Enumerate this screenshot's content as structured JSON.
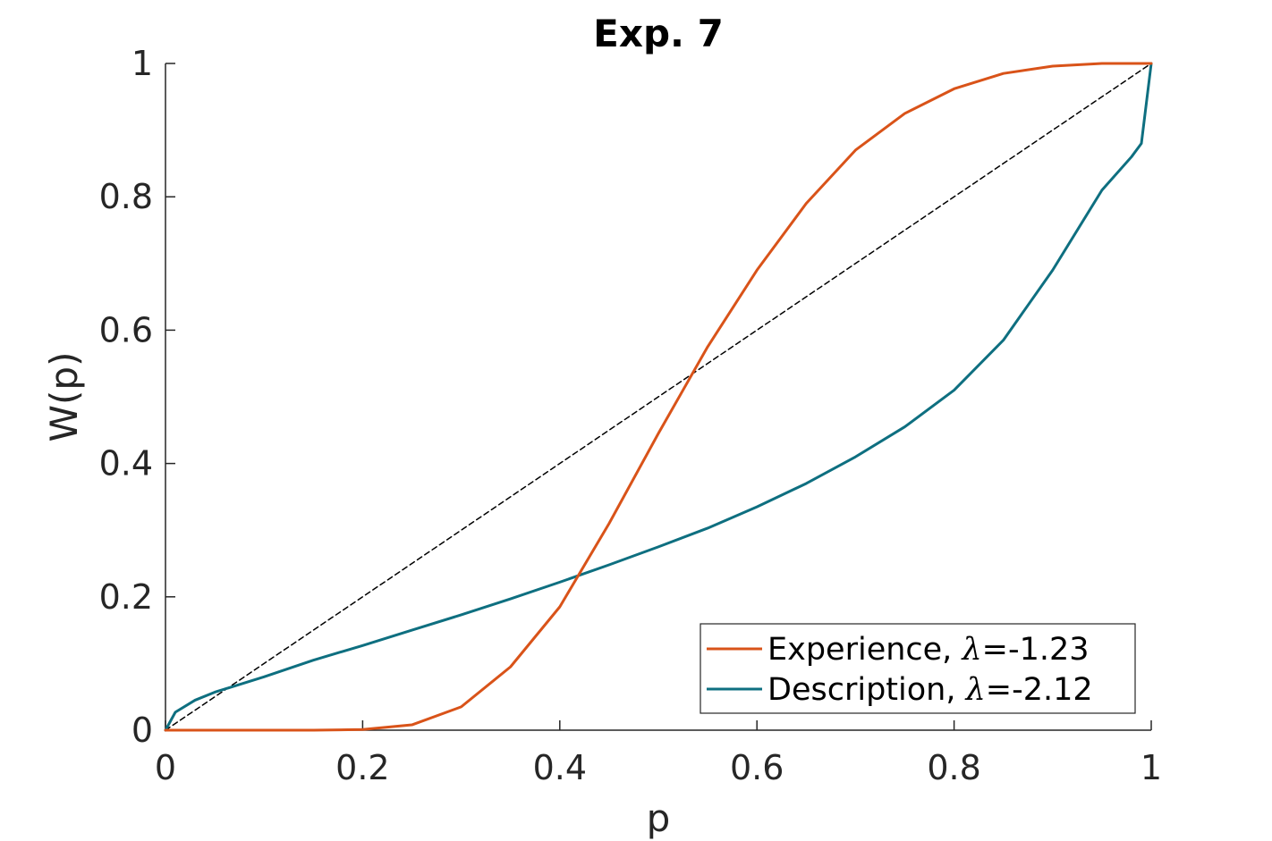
{
  "chart_data": {
    "type": "line",
    "title": "Exp. 7",
    "xlabel": "p",
    "ylabel": "W(p)",
    "xlim": [
      0,
      1
    ],
    "ylim": [
      0,
      1
    ],
    "xticks": [
      0,
      0.2,
      0.4,
      0.6,
      0.8,
      1
    ],
    "xtick_labels": [
      "0",
      "0.2",
      "0.4",
      "0.6",
      "0.8",
      "1"
    ],
    "yticks": [
      0,
      0.2,
      0.4,
      0.6,
      0.8,
      1
    ],
    "ytick_labels": [
      "0",
      "0.2",
      "0.4",
      "0.6",
      "0.8",
      "1"
    ],
    "grid": false,
    "legend_position": "bottom-right",
    "series": [
      {
        "name": "Experience, λ=-1.23",
        "label_prefix": "Experience, ",
        "label_symbol": "λ",
        "label_suffix": "=-1.23",
        "color": "#D95319",
        "x": [
          0,
          0.05,
          0.1,
          0.15,
          0.2,
          0.25,
          0.3,
          0.35,
          0.4,
          0.45,
          0.5,
          0.55,
          0.6,
          0.65,
          0.7,
          0.75,
          0.8,
          0.85,
          0.9,
          0.95,
          1
        ],
        "y": [
          0,
          0,
          0,
          0,
          0.001,
          0.008,
          0.035,
          0.095,
          0.185,
          0.31,
          0.445,
          0.575,
          0.69,
          0.79,
          0.87,
          0.925,
          0.962,
          0.985,
          0.996,
          1.0,
          1.0
        ]
      },
      {
        "name": "Description, λ=-2.12",
        "label_prefix": "Description, ",
        "label_symbol": "λ",
        "label_suffix": "=-2.12",
        "color": "#0E6F80",
        "x": [
          0,
          0.01,
          0.03,
          0.05,
          0.1,
          0.15,
          0.2,
          0.25,
          0.3,
          0.35,
          0.4,
          0.45,
          0.5,
          0.55,
          0.6,
          0.65,
          0.7,
          0.75,
          0.8,
          0.85,
          0.9,
          0.95,
          0.98,
          0.99,
          1
        ],
        "y": [
          0,
          0.027,
          0.045,
          0.057,
          0.08,
          0.105,
          0.127,
          0.15,
          0.173,
          0.197,
          0.222,
          0.248,
          0.275,
          0.303,
          0.335,
          0.37,
          0.41,
          0.455,
          0.51,
          0.585,
          0.69,
          0.81,
          0.86,
          0.88,
          1.0
        ]
      },
      {
        "name": "",
        "color": "#000000",
        "style": "dashed",
        "x": [
          0,
          1
        ],
        "y": [
          0,
          1
        ]
      }
    ]
  }
}
